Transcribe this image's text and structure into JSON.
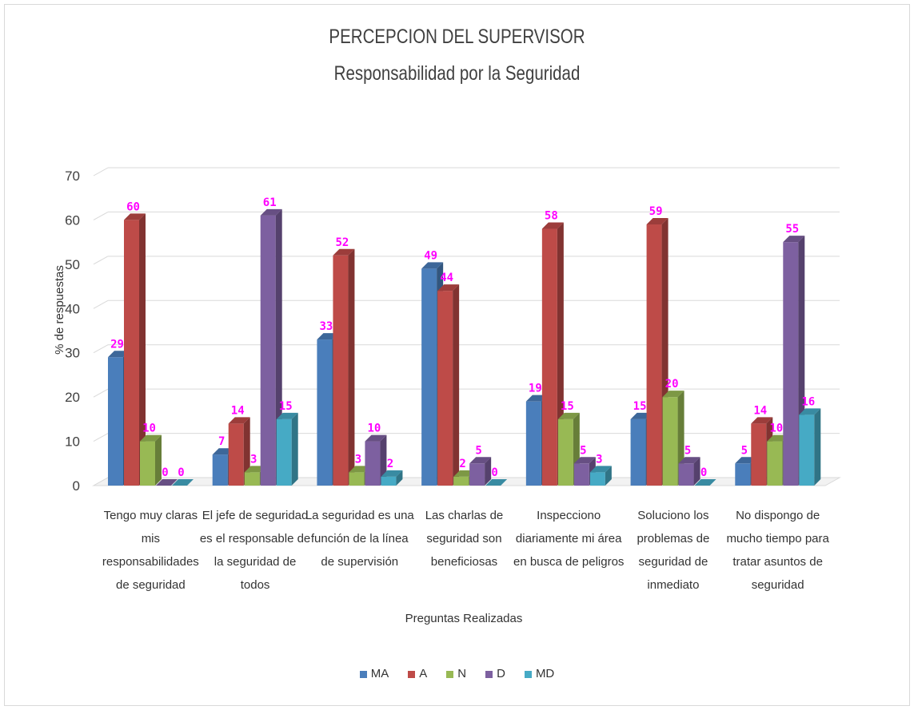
{
  "chart_data": {
    "type": "bar",
    "title": "PERCEPCION DEL SUPERVISOR",
    "subtitle": "Responsabilidad por la Seguridad",
    "xlabel": "Preguntas Realizadas",
    "ylabel": "% de respuestas",
    "ylim": [
      0,
      70
    ],
    "yticks": [
      "0",
      "10",
      "20",
      "30",
      "40",
      "50",
      "60",
      "70"
    ],
    "grid": true,
    "legend_position": "bottom",
    "categories": [
      [
        "Tengo muy claras",
        "mis",
        "responsabilidades",
        "de seguridad"
      ],
      [
        "El jefe de seguridad",
        "es el responsable de",
        "la seguridad de",
        "todos"
      ],
      [
        "La seguridad es una",
        "función de la línea",
        "de supervisión"
      ],
      [
        "Las charlas de",
        "seguridad son",
        "beneficiosas"
      ],
      [
        "Inspecciono",
        "diariamente mi área",
        "en busca de peligros"
      ],
      [
        "Soluciono los",
        "problemas de",
        "seguridad de",
        "inmediato"
      ],
      [
        "No dispongo de",
        "mucho tiempo para",
        "tratar asuntos de",
        "seguridad"
      ]
    ],
    "series": [
      {
        "name": "MA",
        "color": "#4a7ebb",
        "values": [
          29,
          7,
          33,
          49,
          19,
          15,
          5
        ]
      },
      {
        "name": "A",
        "color": "#be4b48",
        "values": [
          60,
          14,
          52,
          44,
          58,
          59,
          14
        ]
      },
      {
        "name": "N",
        "color": "#98b954",
        "values": [
          10,
          3,
          3,
          2,
          15,
          20,
          10
        ]
      },
      {
        "name": "D",
        "color": "#7d60a0",
        "values": [
          0,
          61,
          10,
          5,
          5,
          5,
          55
        ]
      },
      {
        "name": "MD",
        "color": "#46aac5",
        "values": [
          0,
          15,
          2,
          0,
          3,
          0,
          16
        ]
      }
    ]
  }
}
